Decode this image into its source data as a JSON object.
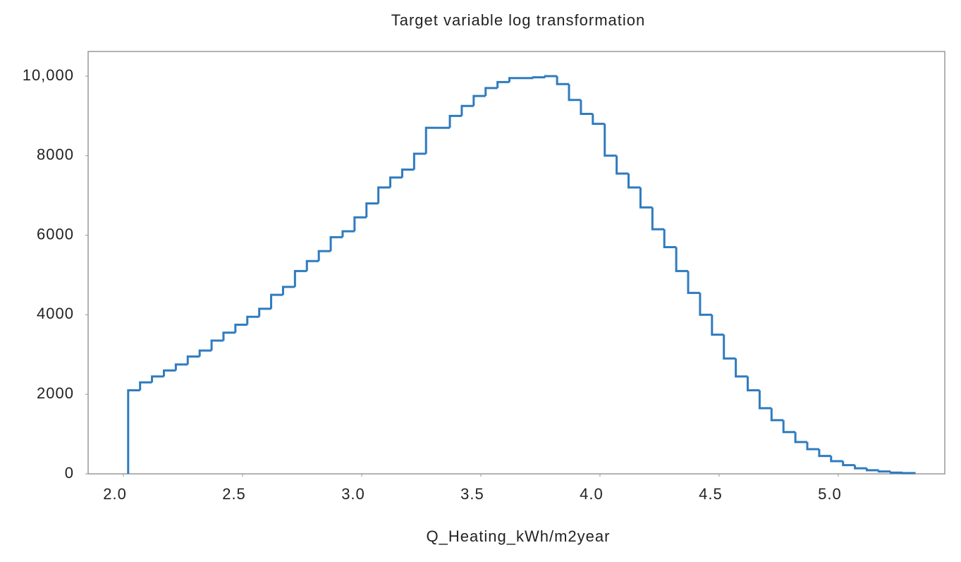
{
  "chart_data": {
    "type": "histogram",
    "title": "Target variable log transformation",
    "x_label": "Q_Heating_kWh/m2year",
    "color": "#2f7bbf",
    "bins": [
      2.02,
      2.07,
      2.12,
      2.17,
      2.22,
      2.27,
      2.32,
      2.37,
      2.42,
      2.47,
      2.52,
      2.57,
      2.62,
      2.67,
      2.72,
      2.77,
      2.82,
      2.87,
      2.92,
      2.97,
      3.02,
      3.07,
      3.12,
      3.17,
      3.22,
      3.27,
      3.32,
      3.37,
      3.42,
      3.47,
      3.52,
      3.57,
      3.62,
      3.67,
      3.72,
      3.77,
      3.82,
      3.87,
      3.92,
      3.97,
      4.02,
      4.07,
      4.12,
      4.17,
      4.22,
      4.27,
      4.32,
      4.37,
      4.42,
      4.47,
      4.52,
      4.57,
      4.62,
      4.67,
      4.72,
      4.77,
      4.82,
      4.87,
      4.92,
      4.97,
      5.02,
      5.07,
      5.12,
      5.17,
      5.22,
      5.27,
      5.32
    ],
    "values": [
      2100,
      2300,
      2450,
      2600,
      2750,
      2950,
      3100,
      3350,
      3550,
      3750,
      3950,
      4150,
      4500,
      4700,
      5100,
      5350,
      5600,
      5950,
      6100,
      6450,
      6800,
      7200,
      7450,
      7650,
      8050,
      8700,
      8700,
      9000,
      9250,
      9500,
      9700,
      9850,
      9950,
      9950,
      9970,
      10000,
      9800,
      9400,
      9050,
      8800,
      8000,
      7550,
      7200,
      6700,
      6150,
      5700,
      5100,
      4550,
      4000,
      3500,
      2900,
      2450,
      2100,
      1650,
      1350,
      1050,
      800,
      620,
      450,
      320,
      220,
      140,
      90,
      60,
      30,
      20
    ],
    "xlim": [
      1.852,
      5.447
    ],
    "ylim": [
      0,
      10620
    ],
    "xticks": [
      {
        "value": 2,
        "label": "2.0"
      },
      2.5,
      {
        "value": 3,
        "label": "3.0"
      },
      3.5,
      {
        "value": 4,
        "label": "4.0"
      },
      4.5,
      {
        "value": 5,
        "label": "5.0"
      }
    ],
    "yticks": [
      0,
      2000,
      4000,
      6000,
      8000,
      {
        "value": 10000,
        "label": "10,000"
      }
    ],
    "grid": false
  }
}
